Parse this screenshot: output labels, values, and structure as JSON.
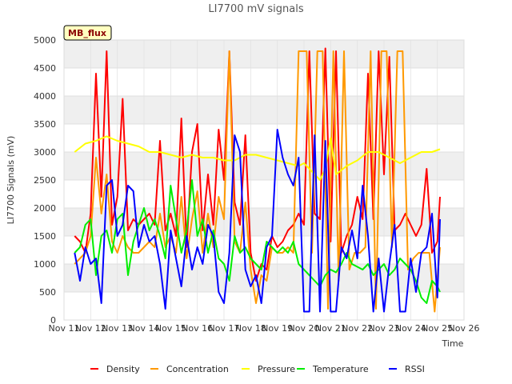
{
  "chart_data": {
    "type": "line",
    "title": "LI7700 mV signals",
    "xlabel": "Time",
    "ylabel": "LI7700 Signals (mV)",
    "badge": "MB_flux",
    "x_ticks": [
      "Nov 11",
      "Nov 12",
      "Nov 13",
      "Nov 14",
      "Nov 15",
      "Nov 16",
      "Nov 17",
      "Nov 18",
      "Nov 19",
      "Nov 20",
      "Nov 21",
      "Nov 22",
      "Nov 23",
      "Nov 24",
      "Nov 25",
      "Nov 26"
    ],
    "xlim": [
      11,
      26
    ],
    "ylim": [
      0,
      5000
    ],
    "y_ticks": [
      0,
      500,
      1000,
      1500,
      2000,
      2500,
      3000,
      3500,
      4000,
      4500,
      5000
    ],
    "grid": true,
    "legend_position": "bottom",
    "series": [
      {
        "name": "Density",
        "color": "#ff0000",
        "x": [
          11.4,
          11.6,
          11.8,
          12.0,
          12.2,
          12.4,
          12.6,
          12.8,
          13.0,
          13.2,
          13.4,
          13.6,
          13.8,
          14.0,
          14.2,
          14.4,
          14.6,
          14.8,
          15.0,
          15.2,
          15.4,
          15.6,
          15.8,
          16.0,
          16.2,
          16.4,
          16.6,
          16.8,
          17.0,
          17.2,
          17.4,
          17.6,
          17.8,
          18.0,
          18.2,
          18.4,
          18.6,
          18.8,
          19.0,
          19.2,
          19.4,
          19.6,
          19.8,
          20.0,
          20.2,
          20.4,
          20.6,
          20.8,
          21.0,
          21.2,
          21.4,
          21.6,
          21.8,
          22.0,
          22.2,
          22.4,
          22.6,
          22.8,
          23.0,
          23.2,
          23.4,
          23.6,
          23.8,
          24.0,
          24.2,
          24.4,
          24.6,
          24.8,
          25.0,
          25.1
        ],
        "y": [
          1500,
          1400,
          1200,
          1900,
          4400,
          2200,
          4800,
          1700,
          2200,
          3950,
          1600,
          1800,
          1700,
          1800,
          1900,
          1700,
          3200,
          1600,
          1900,
          1500,
          3600,
          1300,
          3000,
          3500,
          1600,
          2600,
          1700,
          3400,
          2500,
          4800,
          2100,
          1700,
          3300,
          1200,
          700,
          1000,
          900,
          1500,
          1300,
          1400,
          1600,
          1700,
          1900,
          1700,
          4800,
          1900,
          1800,
          4850,
          1400,
          4800,
          1200,
          1500,
          1700,
          2200,
          1800,
          4400,
          1800,
          4800,
          2600,
          4700,
          1600,
          1700,
          1900,
          1700,
          1500,
          1700,
          2700,
          1200,
          1400,
          2200
        ]
      },
      {
        "name": "Concentration",
        "color": "#ff9900",
        "x": [
          11.4,
          11.6,
          11.8,
          12.0,
          12.2,
          12.4,
          12.6,
          12.8,
          13.0,
          13.2,
          13.4,
          13.6,
          13.8,
          14.0,
          14.2,
          14.4,
          14.6,
          14.8,
          15.0,
          15.2,
          15.4,
          15.6,
          15.8,
          16.0,
          16.2,
          16.4,
          16.6,
          16.8,
          17.0,
          17.2,
          17.4,
          17.6,
          17.8,
          18.0,
          18.2,
          18.4,
          18.6,
          18.8,
          19.0,
          19.2,
          19.4,
          19.6,
          19.8,
          20.0,
          20.1,
          20.3,
          20.5,
          20.7,
          20.9,
          21.1,
          21.3,
          21.5,
          21.7,
          21.9,
          22.1,
          22.3,
          22.5,
          22.7,
          22.9,
          23.1,
          23.3,
          23.5,
          23.7,
          23.9,
          24.1,
          24.3,
          24.5,
          24.7,
          24.9,
          25.1
        ],
        "y": [
          1000,
          1100,
          1200,
          1500,
          2900,
          1900,
          2600,
          1400,
          1200,
          1500,
          1300,
          1200,
          1200,
          1300,
          1400,
          1300,
          1900,
          1300,
          1500,
          1200,
          2200,
          1100,
          1800,
          2300,
          1200,
          1900,
          1300,
          2200,
          1800,
          4800,
          1400,
          1200,
          2100,
          900,
          300,
          800,
          700,
          1300,
          1200,
          1200,
          1300,
          1200,
          4800,
          4800,
          4800,
          1200,
          4800,
          4800,
          200,
          4800,
          700,
          4800,
          900,
          1200,
          1200,
          1300,
          4800,
          200,
          4800,
          4800,
          1300,
          4800,
          4800,
          900,
          1100,
          1200,
          1200,
          1200,
          150,
          1300
        ]
      },
      {
        "name": "Pressure",
        "color": "#ffff00",
        "x": [
          11.4,
          11.8,
          12.2,
          12.6,
          13.0,
          13.4,
          13.8,
          14.2,
          14.6,
          15.0,
          15.4,
          15.8,
          16.2,
          16.6,
          17.0,
          17.4,
          17.8,
          18.2,
          18.6,
          19.0,
          19.4,
          19.8,
          20.0,
          20.2,
          20.4,
          20.6,
          20.8,
          21.0,
          21.2,
          21.6,
          22.0,
          22.4,
          22.8,
          23.2,
          23.6,
          24.0,
          24.4,
          24.8,
          25.1
        ],
        "y": [
          3000,
          3150,
          3200,
          3280,
          3200,
          3150,
          3100,
          3000,
          3000,
          2950,
          2900,
          2950,
          2900,
          2900,
          2850,
          2850,
          2950,
          2950,
          2900,
          2850,
          2800,
          2750,
          2800,
          2700,
          2600,
          2500,
          2700,
          3250,
          2600,
          2750,
          2850,
          3000,
          3000,
          2900,
          2800,
          2900,
          3000,
          3000,
          3050
        ]
      },
      {
        "name": "Temperature",
        "color": "#00ee00",
        "x": [
          11.4,
          11.6,
          11.8,
          12.0,
          12.2,
          12.4,
          12.6,
          12.8,
          13.0,
          13.2,
          13.4,
          13.6,
          13.8,
          14.0,
          14.2,
          14.4,
          14.6,
          14.8,
          15.0,
          15.2,
          15.4,
          15.6,
          15.8,
          16.0,
          16.2,
          16.4,
          16.6,
          16.8,
          17.0,
          17.2,
          17.4,
          17.6,
          17.8,
          18.0,
          18.2,
          18.4,
          18.6,
          18.8,
          19.0,
          19.2,
          19.4,
          19.6,
          19.8,
          20.0,
          20.2,
          20.4,
          20.6,
          20.8,
          21.0,
          21.2,
          21.4,
          21.6,
          21.8,
          22.0,
          22.2,
          22.4,
          22.6,
          22.8,
          23.0,
          23.2,
          23.4,
          23.6,
          23.8,
          24.0,
          24.2,
          24.4,
          24.6,
          24.8,
          25.0,
          25.1
        ],
        "y": [
          1200,
          1300,
          1700,
          1800,
          800,
          1500,
          1600,
          1200,
          1800,
          1900,
          800,
          1400,
          1700,
          2000,
          1600,
          1800,
          1500,
          1100,
          2400,
          1800,
          1200,
          1600,
          2500,
          1500,
          1800,
          1200,
          1600,
          1100,
          1000,
          700,
          1500,
          1200,
          1300,
          1100,
          1000,
          900,
          1400,
          1300,
          1200,
          1300,
          1200,
          1400,
          1000,
          900,
          800,
          700,
          600,
          800,
          900,
          850,
          1000,
          1200,
          1000,
          950,
          900,
          1000,
          800,
          900,
          1000,
          800,
          900,
          1100,
          1000,
          900,
          700,
          400,
          300,
          700,
          600,
          500
        ]
      },
      {
        "name": "RSSI",
        "color": "#0000ff",
        "x": [
          11.4,
          11.6,
          11.8,
          12.0,
          12.2,
          12.4,
          12.6,
          12.8,
          13.0,
          13.2,
          13.4,
          13.6,
          13.8,
          14.0,
          14.2,
          14.4,
          14.6,
          14.8,
          15.0,
          15.2,
          15.4,
          15.6,
          15.8,
          16.0,
          16.2,
          16.4,
          16.6,
          16.8,
          17.0,
          17.2,
          17.4,
          17.6,
          17.8,
          18.0,
          18.2,
          18.4,
          18.6,
          18.8,
          19.0,
          19.2,
          19.4,
          19.6,
          19.8,
          20.0,
          20.2,
          20.4,
          20.6,
          20.8,
          21.0,
          21.2,
          21.4,
          21.6,
          21.8,
          22.0,
          22.2,
          22.4,
          22.6,
          22.8,
          23.0,
          23.2,
          23.4,
          23.6,
          23.8,
          24.0,
          24.2,
          24.4,
          24.6,
          24.8,
          25.0,
          25.1
        ],
        "y": [
          1200,
          700,
          1300,
          1000,
          1100,
          300,
          2400,
          2500,
          1500,
          1700,
          2400,
          2300,
          1300,
          1700,
          1400,
          1500,
          1000,
          200,
          1600,
          1100,
          600,
          1500,
          900,
          1300,
          1000,
          1700,
          1500,
          500,
          300,
          1200,
          3300,
          3000,
          900,
          600,
          800,
          300,
          1300,
          1500,
          3400,
          2900,
          2600,
          2400,
          2900,
          150,
          150,
          3300,
          150,
          3200,
          150,
          150,
          1300,
          1100,
          1600,
          1100,
          2400,
          1500,
          150,
          1100,
          150,
          1000,
          1700,
          150,
          150,
          1100,
          500,
          1200,
          1300,
          1900,
          400,
          1800
        ]
      }
    ]
  }
}
